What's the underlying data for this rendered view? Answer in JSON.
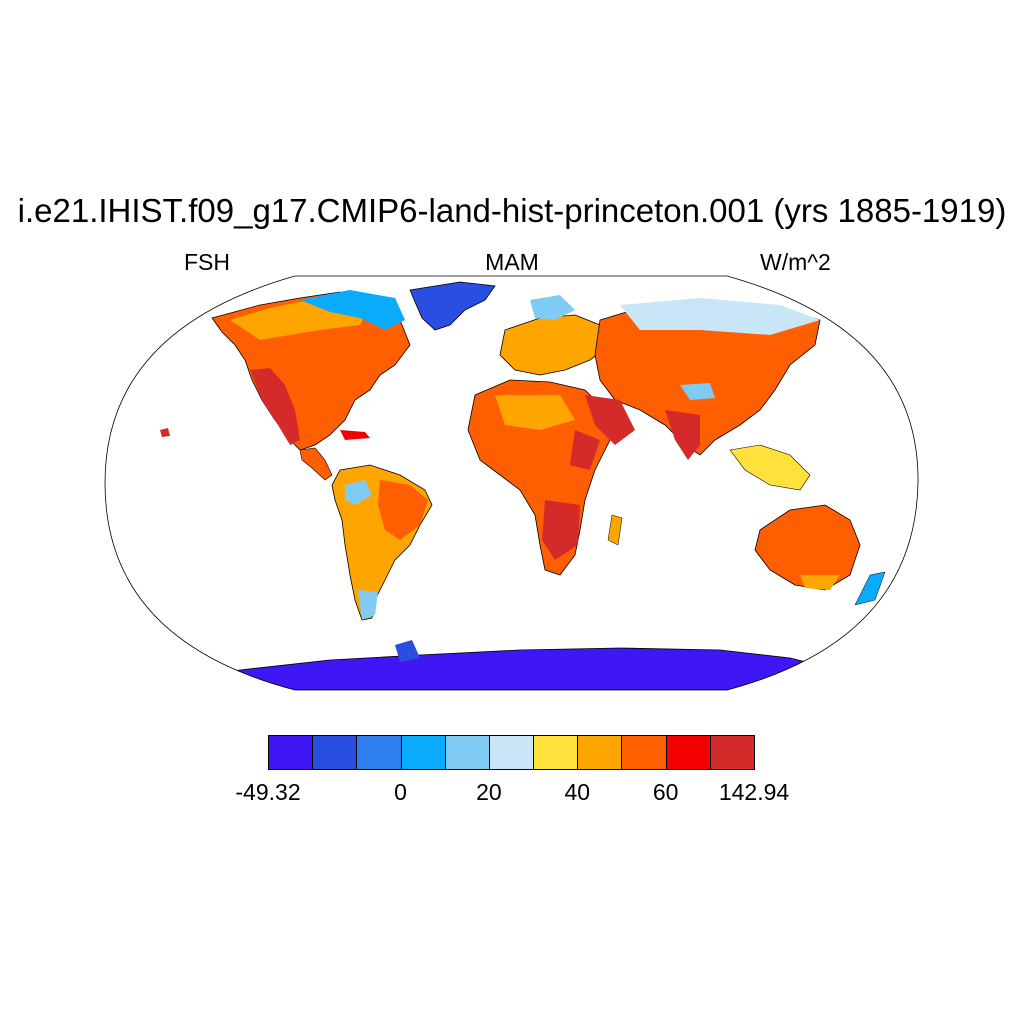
{
  "title": "i.e21.IHIST.f09_g17.CMIP6-land-hist-princeton.001 (yrs 1885-1919)",
  "variable": "FSH",
  "season": "MAM",
  "units": "W/m^2",
  "colorbar": {
    "colors": [
      "#3f17f4",
      "#2a4ee2",
      "#2d7ff0",
      "#0aaafc",
      "#7fcbf3",
      "#c8e6f8",
      "#ffe13c",
      "#ffa500",
      "#ff5f00",
      "#f50000",
      "#d42a2a"
    ],
    "labels": [
      {
        "text": "-49.32",
        "boundary": 0
      },
      {
        "text": "0",
        "boundary": 3
      },
      {
        "text": "20",
        "boundary": 5
      },
      {
        "text": "40",
        "boundary": 7
      },
      {
        "text": "60",
        "boundary": 9
      },
      {
        "text": "142.94",
        "boundary": 11
      }
    ]
  }
}
